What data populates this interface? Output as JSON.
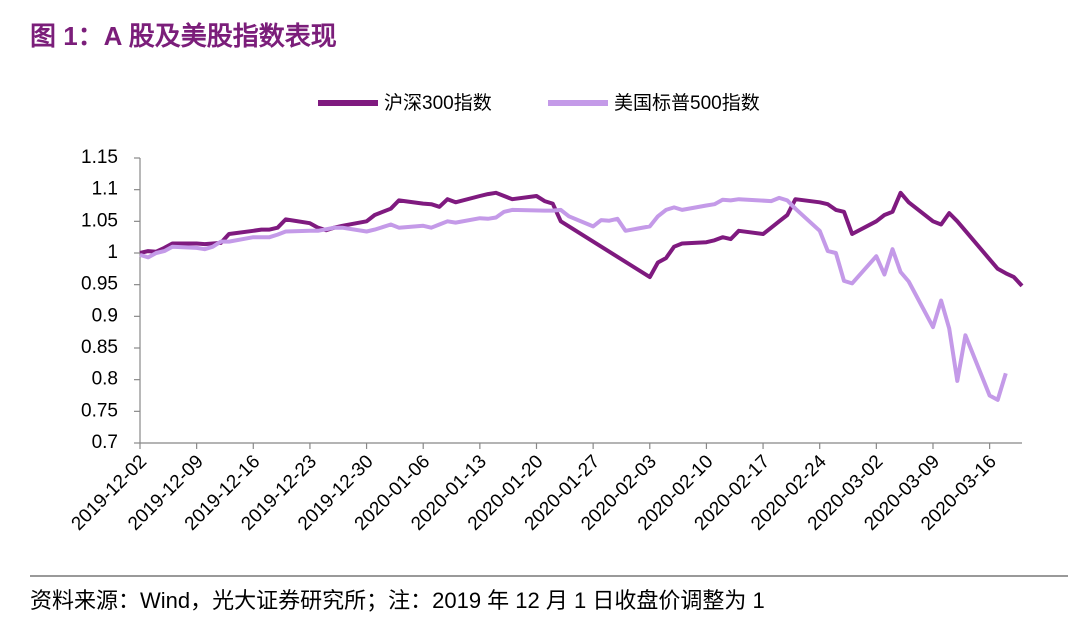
{
  "chart_data": {
    "type": "line",
    "title": "图 1：A 股及美股指数表现",
    "note": "资料来源：Wind，光大证券研究所；注：2019 年 12 月 1 日收盘价调整为 1",
    "xlim": [
      "2019-12-02",
      "2020-03-20"
    ],
    "xticks": [
      "2019-12-02",
      "2019-12-09",
      "2019-12-16",
      "2019-12-23",
      "2019-12-30",
      "2020-01-06",
      "2020-01-13",
      "2020-01-20",
      "2020-01-27",
      "2020-02-03",
      "2020-02-10",
      "2020-02-17",
      "2020-02-24",
      "2020-03-02",
      "2020-03-09",
      "2020-03-16"
    ],
    "ylim": [
      0.7,
      1.15
    ],
    "yticks": [
      1.15,
      1.1,
      1.05,
      1,
      0.95,
      0.9,
      0.85,
      0.8,
      0.75,
      0.7
    ],
    "grid": false,
    "legend": "top",
    "series": [
      {
        "name": "沪深300指数",
        "color": "#7f1a7f",
        "x": [
          "2019-12-02",
          "2019-12-03",
          "2019-12-04",
          "2019-12-05",
          "2019-12-06",
          "2019-12-09",
          "2019-12-10",
          "2019-12-11",
          "2019-12-12",
          "2019-12-13",
          "2019-12-16",
          "2019-12-17",
          "2019-12-18",
          "2019-12-19",
          "2019-12-20",
          "2019-12-23",
          "2019-12-24",
          "2019-12-25",
          "2019-12-26",
          "2019-12-27",
          "2019-12-30",
          "2019-12-31",
          "2020-01-02",
          "2020-01-03",
          "2020-01-06",
          "2020-01-07",
          "2020-01-08",
          "2020-01-09",
          "2020-01-10",
          "2020-01-13",
          "2020-01-14",
          "2020-01-15",
          "2020-01-16",
          "2020-01-17",
          "2020-01-20",
          "2020-01-21",
          "2020-01-22",
          "2020-01-23",
          "2020-02-03",
          "2020-02-04",
          "2020-02-05",
          "2020-02-06",
          "2020-02-07",
          "2020-02-10",
          "2020-02-11",
          "2020-02-12",
          "2020-02-13",
          "2020-02-14",
          "2020-02-17",
          "2020-02-18",
          "2020-02-19",
          "2020-02-20",
          "2020-02-21",
          "2020-02-24",
          "2020-02-25",
          "2020-02-26",
          "2020-02-27",
          "2020-02-28",
          "2020-03-02",
          "2020-03-03",
          "2020-03-04",
          "2020-03-05",
          "2020-03-06",
          "2020-03-09",
          "2020-03-10",
          "2020-03-11",
          "2020-03-12",
          "2020-03-13",
          "2020-03-16",
          "2020-03-17",
          "2020-03-18",
          "2020-03-19",
          "2020-03-20"
        ],
        "values": [
          1.0,
          1.003,
          1.002,
          1.008,
          1.015,
          1.015,
          1.014,
          1.015,
          1.016,
          1.03,
          1.035,
          1.037,
          1.037,
          1.04,
          1.053,
          1.047,
          1.04,
          1.036,
          1.04,
          1.043,
          1.05,
          1.06,
          1.07,
          1.083,
          1.078,
          1.077,
          1.073,
          1.085,
          1.08,
          1.09,
          1.093,
          1.095,
          1.09,
          1.085,
          1.09,
          1.082,
          1.078,
          1.05,
          0.962,
          0.985,
          0.992,
          1.01,
          1.015,
          1.017,
          1.02,
          1.025,
          1.022,
          1.035,
          1.03,
          1.04,
          1.05,
          1.06,
          1.085,
          1.08,
          1.077,
          1.068,
          1.065,
          1.03,
          1.05,
          1.06,
          1.065,
          1.095,
          1.08,
          1.05,
          1.045,
          1.063,
          1.05,
          1.035,
          0.99,
          0.975,
          0.968,
          0.962,
          0.948
        ]
      },
      {
        "name": "美国标普500指数",
        "color": "#c49ae8",
        "x": [
          "2019-12-02",
          "2019-12-03",
          "2019-12-04",
          "2019-12-05",
          "2019-12-06",
          "2019-12-09",
          "2019-12-10",
          "2019-12-11",
          "2019-12-12",
          "2019-12-13",
          "2019-12-16",
          "2019-12-17",
          "2019-12-18",
          "2019-12-19",
          "2019-12-20",
          "2019-12-23",
          "2019-12-24",
          "2019-12-26",
          "2019-12-27",
          "2019-12-30",
          "2019-12-31",
          "2020-01-02",
          "2020-01-03",
          "2020-01-06",
          "2020-01-07",
          "2020-01-08",
          "2020-01-09",
          "2020-01-10",
          "2020-01-13",
          "2020-01-14",
          "2020-01-15",
          "2020-01-16",
          "2020-01-17",
          "2020-01-21",
          "2020-01-22",
          "2020-01-23",
          "2020-01-24",
          "2020-01-27",
          "2020-01-28",
          "2020-01-29",
          "2020-01-30",
          "2020-01-31",
          "2020-02-03",
          "2020-02-04",
          "2020-02-05",
          "2020-02-06",
          "2020-02-07",
          "2020-02-10",
          "2020-02-11",
          "2020-02-12",
          "2020-02-13",
          "2020-02-14",
          "2020-02-18",
          "2020-02-19",
          "2020-02-20",
          "2020-02-21",
          "2020-02-24",
          "2020-02-25",
          "2020-02-26",
          "2020-02-27",
          "2020-02-28",
          "2020-03-02",
          "2020-03-03",
          "2020-03-04",
          "2020-03-05",
          "2020-03-06",
          "2020-03-09",
          "2020-03-10",
          "2020-03-11",
          "2020-03-12",
          "2020-03-13",
          "2020-03-16",
          "2020-03-17",
          "2020-03-18"
        ],
        "values": [
          0.997,
          0.993,
          1.0,
          1.003,
          1.01,
          1.008,
          1.006,
          1.01,
          1.018,
          1.018,
          1.025,
          1.025,
          1.025,
          1.029,
          1.034,
          1.035,
          1.035,
          1.04,
          1.04,
          1.034,
          1.037,
          1.045,
          1.04,
          1.043,
          1.04,
          1.045,
          1.05,
          1.048,
          1.055,
          1.054,
          1.056,
          1.065,
          1.068,
          1.067,
          1.067,
          1.068,
          1.058,
          1.042,
          1.052,
          1.051,
          1.054,
          1.035,
          1.042,
          1.058,
          1.068,
          1.072,
          1.068,
          1.075,
          1.077,
          1.084,
          1.083,
          1.085,
          1.082,
          1.087,
          1.083,
          1.07,
          1.035,
          1.003,
          1.0,
          0.956,
          0.952,
          0.995,
          0.966,
          1.006,
          0.97,
          0.955,
          0.883,
          0.925,
          0.881,
          0.798,
          0.87,
          0.775,
          0.768,
          0.81
        ]
      }
    ]
  }
}
